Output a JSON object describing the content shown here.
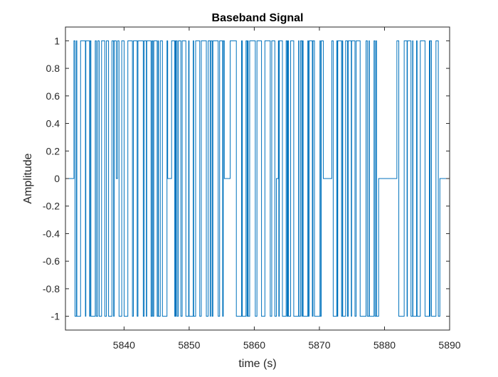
{
  "chart_data": {
    "type": "line",
    "title": "Baseband Signal",
    "xlabel": "time (s)",
    "ylabel": "Amplitude",
    "xlim": [
      5831,
      5890
    ],
    "ylim": [
      -1.1,
      1.1
    ],
    "xticks": [
      5840,
      5850,
      5860,
      5870,
      5880,
      5890
    ],
    "yticks": [
      1,
      0.8,
      0.6,
      0.4,
      0.2,
      0,
      -0.2,
      -0.4,
      -0.6,
      -0.8,
      -1
    ],
    "ytick_labels": [
      "1",
      "0.8",
      "0.6",
      "0.4",
      "0.2",
      "0",
      "-0.2",
      "-0.4",
      "-0.6",
      "-0.8",
      "-1"
    ],
    "grid": false,
    "line_color": "#0072BD",
    "series": [
      {
        "segments": [
          {
            "x_start": 5831.0,
            "x_end": 5832.3,
            "level": 0
          },
          {
            "x_start": 5832.3,
            "x_end": 5838.8,
            "pattern": "random",
            "seed": 11
          },
          {
            "x_start": 5838.8,
            "x_end": 5839.0,
            "level": 0
          },
          {
            "x_start": 5839.0,
            "x_end": 5846.7,
            "pattern": "random",
            "seed": 23
          },
          {
            "x_start": 5846.7,
            "x_end": 5847.3,
            "level": 0
          },
          {
            "x_start": 5847.3,
            "x_end": 5855.4,
            "pattern": "random",
            "seed": 37
          },
          {
            "x_start": 5855.4,
            "x_end": 5856.3,
            "level": 0
          },
          {
            "x_start": 5856.3,
            "x_end": 5863.4,
            "pattern": "random",
            "seed": 41
          },
          {
            "x_start": 5863.4,
            "x_end": 5863.7,
            "level": 0
          },
          {
            "x_start": 5863.7,
            "x_end": 5870.6,
            "pattern": "random",
            "seed": 53
          },
          {
            "x_start": 5870.6,
            "x_end": 5871.9,
            "level": 0
          },
          {
            "x_start": 5871.9,
            "x_end": 5879.1,
            "pattern": "random",
            "seed": 67
          },
          {
            "x_start": 5879.1,
            "x_end": 5881.9,
            "level": 0
          },
          {
            "x_start": 5881.9,
            "x_end": 5888.5,
            "pattern": "random",
            "seed": 79
          },
          {
            "x_start": 5888.5,
            "x_end": 5890.0,
            "level": 0
          }
        ]
      }
    ]
  }
}
